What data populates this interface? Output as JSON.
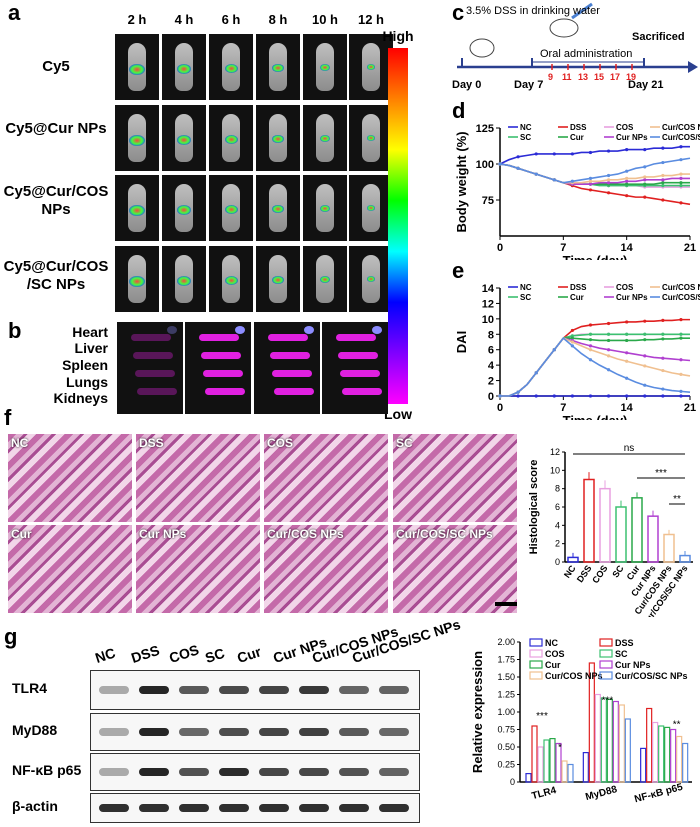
{
  "panels": {
    "a": "a",
    "b": "b",
    "c": "c",
    "d": "d",
    "e": "e",
    "f": "f",
    "g": "g"
  },
  "panel_a": {
    "times": [
      "2 h",
      "4 h",
      "6 h",
      "8 h",
      "10 h",
      "12 h"
    ],
    "rows": [
      "Cy5",
      "Cy5@Cur NPs",
      "Cy5@Cur/COS NPs",
      "Cy5@Cur/COS /SC NPs"
    ],
    "colorbar_high": "High",
    "colorbar_low": "Low"
  },
  "panel_b": {
    "organs": [
      "Heart",
      "Liver",
      "Spleen",
      "Lungs",
      "Kidneys"
    ]
  },
  "panel_c": {
    "note": "3.5% DSS in drinking water",
    "day0": "Day 0",
    "day7": "Day 7",
    "oral": "Oral administration",
    "doses": [
      "9",
      "11",
      "13",
      "15",
      "17",
      "19"
    ],
    "sacrificed": "Sacrificed",
    "day21": "Day 21"
  },
  "panel_f": {
    "images": [
      "NC",
      "DSS",
      "COS",
      "SC",
      "Cur",
      "Cur NPs",
      "Cur/COS NPs",
      "Cur/COS/SC NPs"
    ]
  },
  "panel_g": {
    "lanes": [
      "NC",
      "DSS",
      "COS",
      "SC",
      "Cur",
      "Cur NPs",
      "Cur/COS NPs",
      "Cur/COS/SC NPs"
    ],
    "proteins": [
      "TLR4",
      "MyD88",
      "NF-κB p65",
      "β-actin"
    ]
  },
  "chart_data": [
    {
      "id": "d",
      "type": "line",
      "ylabel": "Body weight (%)",
      "xlabel": "Time (day)",
      "xlim": [
        0,
        21
      ],
      "ylim": [
        50,
        125
      ],
      "xticks": [
        0,
        7,
        14,
        21
      ],
      "yticks": [
        75,
        100,
        125
      ],
      "x": [
        0,
        1,
        2,
        3,
        4,
        5,
        6,
        7,
        8,
        9,
        10,
        11,
        12,
        13,
        14,
        15,
        16,
        17,
        18,
        19,
        20,
        21
      ],
      "series": [
        {
          "name": "NC",
          "color": "#2b2bd6",
          "values": [
            100,
            103,
            105,
            106,
            107,
            107,
            107,
            107,
            107,
            108,
            108,
            109,
            109,
            109,
            110,
            110,
            110,
            111,
            111,
            111,
            112,
            112
          ]
        },
        {
          "name": "DSS",
          "color": "#e02020",
          "values": [
            100,
            99,
            97,
            95,
            93,
            91,
            89,
            87,
            85,
            83,
            82,
            81,
            80,
            79,
            78,
            77,
            77,
            76,
            75,
            74,
            73,
            72
          ]
        },
        {
          "name": "COS",
          "color": "#e8a0e0",
          "values": [
            100,
            99,
            97,
            95,
            93,
            91,
            89,
            87,
            86,
            86,
            86,
            86,
            85,
            85,
            85,
            85,
            84,
            84,
            84,
            84,
            84,
            84
          ]
        },
        {
          "name": "SC",
          "color": "#3cc070",
          "values": [
            100,
            99,
            97,
            95,
            93,
            91,
            89,
            87,
            86,
            86,
            86,
            85,
            85,
            85,
            85,
            85,
            85,
            85,
            85,
            85,
            85,
            85
          ]
        },
        {
          "name": "Cur",
          "color": "#2aa84a",
          "values": [
            100,
            99,
            97,
            95,
            93,
            91,
            89,
            87,
            86,
            86,
            86,
            86,
            86,
            86,
            86,
            86,
            86,
            86,
            87,
            87,
            87,
            87
          ]
        },
        {
          "name": "Cur NPs",
          "color": "#b040d0",
          "values": [
            100,
            99,
            97,
            95,
            93,
            91,
            89,
            87,
            86,
            86,
            86,
            87,
            87,
            87,
            88,
            88,
            89,
            89,
            89,
            90,
            90,
            90
          ]
        },
        {
          "name": "Cur/COS NPs",
          "color": "#f0c090",
          "values": [
            100,
            99,
            97,
            95,
            93,
            91,
            89,
            87,
            87,
            87,
            88,
            88,
            89,
            89,
            90,
            90,
            91,
            91,
            92,
            92,
            93,
            93
          ]
        },
        {
          "name": "Cur/COS/SC NPs",
          "color": "#5a8ce0",
          "values": [
            100,
            99,
            97,
            95,
            93,
            91,
            89,
            87,
            88,
            89,
            90,
            91,
            92,
            93,
            95,
            97,
            98,
            100,
            101,
            102,
            103,
            104
          ]
        }
      ]
    },
    {
      "id": "e",
      "type": "line",
      "ylabel": "DAI",
      "xlabel": "Time (day)",
      "xlim": [
        0,
        21
      ],
      "ylim": [
        0,
        14
      ],
      "xticks": [
        0,
        7,
        14,
        21
      ],
      "yticks": [
        0,
        2,
        4,
        6,
        8,
        10,
        12,
        14
      ],
      "x": [
        0,
        1,
        2,
        3,
        4,
        5,
        6,
        7,
        8,
        9,
        10,
        11,
        12,
        13,
        14,
        15,
        16,
        17,
        18,
        19,
        20,
        21
      ],
      "series": [
        {
          "name": "NC",
          "color": "#2b2bd6",
          "values": [
            0,
            0,
            0,
            0,
            0,
            0,
            0,
            0,
            0,
            0,
            0,
            0,
            0,
            0,
            0,
            0,
            0,
            0,
            0,
            0,
            0,
            0
          ]
        },
        {
          "name": "DSS",
          "color": "#e02020",
          "values": [
            0,
            0,
            0.5,
            1.5,
            3,
            4.5,
            6,
            7.5,
            8.5,
            9,
            9.2,
            9.3,
            9.4,
            9.5,
            9.6,
            9.6,
            9.7,
            9.7,
            9.8,
            9.8,
            9.9,
            9.9
          ]
        },
        {
          "name": "COS",
          "color": "#e8a0e0",
          "values": [
            0,
            0,
            0.5,
            1.5,
            3,
            4.5,
            6,
            7.5,
            7.8,
            8,
            8,
            8,
            8,
            8,
            8,
            8,
            8,
            8,
            8,
            8,
            8,
            8
          ]
        },
        {
          "name": "SC",
          "color": "#3cc070",
          "values": [
            0,
            0,
            0.5,
            1.5,
            3,
            4.5,
            6,
            7.5,
            7.8,
            7.9,
            8,
            8,
            8,
            8,
            8,
            8,
            8,
            8,
            8,
            8,
            8,
            8
          ]
        },
        {
          "name": "Cur",
          "color": "#2aa84a",
          "values": [
            0,
            0,
            0.5,
            1.5,
            3,
            4.5,
            6,
            7.5,
            7.5,
            7.4,
            7.3,
            7.2,
            7.2,
            7.2,
            7.2,
            7.2,
            7.3,
            7.3,
            7.4,
            7.4,
            7.5,
            7.5
          ]
        },
        {
          "name": "Cur NPs",
          "color": "#b040d0",
          "values": [
            0,
            0,
            0.5,
            1.5,
            3,
            4.5,
            6,
            7.5,
            7.2,
            6.8,
            6.5,
            6.2,
            6,
            5.8,
            5.6,
            5.4,
            5.2,
            5,
            4.9,
            4.8,
            4.7,
            4.6
          ]
        },
        {
          "name": "Cur/COS NPs",
          "color": "#f0c090",
          "values": [
            0,
            0,
            0.5,
            1.5,
            3,
            4.5,
            6,
            7.5,
            7,
            6.5,
            6,
            5.6,
            5.2,
            4.8,
            4.5,
            4.2,
            3.9,
            3.6,
            3.3,
            3,
            2.8,
            2.6
          ]
        },
        {
          "name": "Cur/COS/SC NPs",
          "color": "#5a8ce0",
          "values": [
            0,
            0,
            0.5,
            1.5,
            3,
            4.5,
            6,
            7.5,
            6.5,
            5.5,
            4.7,
            4,
            3.4,
            2.8,
            2.3,
            1.8,
            1.4,
            1.1,
            0.9,
            0.7,
            0.6,
            0.5
          ]
        }
      ]
    },
    {
      "id": "f_bar",
      "type": "bar",
      "ylabel": "Histological score",
      "ylim": [
        0,
        12
      ],
      "yticks": [
        0,
        2,
        4,
        6,
        8,
        10,
        12
      ],
      "categories": [
        "NC",
        "DSS",
        "COS",
        "SC",
        "Cur",
        "Cur NPs",
        "Cur/COS NPs",
        "Cur/COS/SC NPs"
      ],
      "values": [
        0.5,
        9,
        8,
        6,
        7,
        5,
        3,
        0.7
      ],
      "errors": [
        0.5,
        0.8,
        0.9,
        0.7,
        0.6,
        0.6,
        0.5,
        0.5
      ],
      "colors": [
        "#2b2bd6",
        "#e02020",
        "#e8a0e0",
        "#3cc070",
        "#2aa84a",
        "#b040d0",
        "#f0c090",
        "#5a8ce0"
      ],
      "annotations": [
        "ns",
        "***",
        "**"
      ]
    },
    {
      "id": "g_bar",
      "type": "bar",
      "ylabel": "Relative expression",
      "ylim": [
        0,
        2.0
      ],
      "yticks": [
        0,
        0.25,
        0.5,
        0.75,
        1.0,
        1.25,
        1.5,
        1.75,
        2.0
      ],
      "yticklabels": [
        "0",
        "0.25",
        "0.50",
        "0.75",
        "1.00",
        "1.25",
        "1.50",
        "1.75",
        "2.00"
      ],
      "categories": [
        "TLR4",
        "MyD88",
        "NF-κB p65"
      ],
      "series": [
        {
          "name": "NC",
          "color": "#2b2bd6",
          "values": [
            0.12,
            0.42,
            0.48
          ]
        },
        {
          "name": "DSS",
          "color": "#e02020",
          "values": [
            0.8,
            1.7,
            1.05
          ]
        },
        {
          "name": "COS",
          "color": "#e8a0e0",
          "values": [
            0.5,
            1.25,
            0.85
          ]
        },
        {
          "name": "SC",
          "color": "#3cc070",
          "values": [
            0.6,
            1.2,
            0.8
          ]
        },
        {
          "name": "Cur",
          "color": "#2aa84a",
          "values": [
            0.62,
            1.18,
            0.78
          ]
        },
        {
          "name": "Cur NPs",
          "color": "#b040d0",
          "values": [
            0.55,
            1.15,
            0.75
          ]
        },
        {
          "name": "Cur/COS NPs",
          "color": "#f0c090",
          "values": [
            0.3,
            1.1,
            0.65
          ]
        },
        {
          "name": "Cur/COS/SC NPs",
          "color": "#5a8ce0",
          "values": [
            0.25,
            0.9,
            0.55
          ]
        }
      ],
      "annotations": [
        "***",
        "*",
        "***",
        "**"
      ]
    }
  ]
}
